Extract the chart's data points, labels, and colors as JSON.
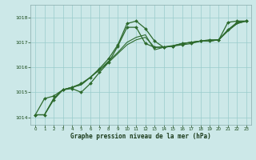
{
  "xlabel": "Graphe pression niveau de la mer (hPa)",
  "background_color": "#cce8e8",
  "grid_color": "#99cccc",
  "line_color": "#2d6a2d",
  "xlim": [
    -0.5,
    23.5
  ],
  "ylim": [
    1013.7,
    1018.5
  ],
  "xticks": [
    0,
    1,
    2,
    3,
    4,
    5,
    6,
    7,
    8,
    9,
    10,
    11,
    12,
    13,
    14,
    15,
    16,
    17,
    18,
    19,
    20,
    21,
    22,
    23
  ],
  "yticks": [
    1014,
    1015,
    1016,
    1017,
    1018
  ],
  "line1_x": [
    0,
    1,
    2,
    3,
    4,
    5,
    6,
    7,
    8,
    9,
    10,
    11,
    12,
    13,
    14,
    15,
    16,
    17,
    18,
    19,
    20,
    21,
    22,
    23
  ],
  "line1_y": [
    1014.1,
    1014.75,
    1014.85,
    1015.1,
    1015.2,
    1015.35,
    1015.6,
    1015.95,
    1016.35,
    1016.9,
    1017.75,
    1017.85,
    1017.55,
    1017.05,
    1016.8,
    1016.85,
    1016.95,
    1017.0,
    1017.05,
    1017.1,
    1017.1,
    1017.8,
    1017.85,
    1017.85
  ],
  "line2_x": [
    0,
    1,
    2,
    3,
    4,
    5,
    6,
    7,
    8,
    9,
    10,
    11,
    12,
    13,
    14,
    15,
    16,
    17,
    18,
    19,
    20,
    21,
    22,
    23
  ],
  "line2_y": [
    1014.1,
    1014.1,
    1014.7,
    1015.1,
    1015.15,
    1015.0,
    1015.35,
    1015.8,
    1016.2,
    1016.85,
    1017.6,
    1017.6,
    1016.95,
    1016.8,
    1016.8,
    1016.85,
    1016.9,
    1016.95,
    1017.05,
    1017.05,
    1017.1,
    1017.5,
    1017.8,
    1017.85
  ],
  "line3_x": [
    0,
    1,
    2,
    3,
    4,
    5,
    6,
    7,
    8,
    9,
    10,
    11,
    12,
    13,
    14,
    15,
    16,
    17,
    18,
    19,
    20,
    21,
    22,
    23
  ],
  "line3_y": [
    1014.1,
    1014.1,
    1014.75,
    1015.1,
    1015.2,
    1015.3,
    1015.6,
    1015.9,
    1016.25,
    1016.6,
    1017.0,
    1017.2,
    1017.3,
    1016.7,
    1016.8,
    1016.85,
    1016.95,
    1017.0,
    1017.05,
    1017.05,
    1017.1,
    1017.5,
    1017.75,
    1017.85
  ],
  "line4_x": [
    0,
    1,
    2,
    3,
    4,
    5,
    6,
    7,
    8,
    9,
    10,
    11,
    12,
    13,
    14,
    15,
    16,
    17,
    18,
    19,
    20,
    21,
    22,
    23
  ],
  "line4_y": [
    1014.1,
    1014.1,
    1014.75,
    1015.1,
    1015.2,
    1015.3,
    1015.6,
    1015.9,
    1016.2,
    1016.55,
    1016.9,
    1017.1,
    1017.2,
    1016.8,
    1016.82,
    1016.87,
    1016.95,
    1017.0,
    1017.05,
    1017.05,
    1017.1,
    1017.45,
    1017.75,
    1017.85
  ]
}
